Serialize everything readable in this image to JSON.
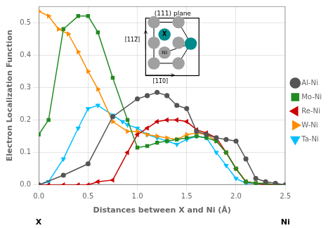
{
  "chart_data": {
    "type": "line",
    "xlabel": "Distances between X and Ni (Å)",
    "ylabel": "Electron Localization Function",
    "xlim": [
      0.0,
      2.5
    ],
    "ylim": [
      0.0,
      0.55
    ],
    "xticks": [
      {
        "value": 0.0,
        "label": "0.0"
      },
      {
        "value": 0.5,
        "label": "0.5"
      },
      {
        "value": 1.0,
        "label": "1.0"
      },
      {
        "value": 1.5,
        "label": "1.5"
      },
      {
        "value": 2.0,
        "label": "2.0"
      },
      {
        "value": 2.5,
        "label": "2.5"
      }
    ],
    "yticks": [
      {
        "value": 0.0,
        "label": "0.0"
      },
      {
        "value": 0.1,
        "label": "0.1"
      },
      {
        "value": 0.2,
        "label": "0.2"
      },
      {
        "value": 0.3,
        "label": "0.3"
      },
      {
        "value": 0.4,
        "label": "0.4"
      },
      {
        "value": 0.5,
        "label": "0.5"
      }
    ],
    "grid": true,
    "legend": "right",
    "series": [
      {
        "name": "Al-Ni",
        "color": "#555555",
        "marker": "circle",
        "x": [
          0.0,
          0.25,
          0.5,
          0.75,
          1.0,
          1.1,
          1.2,
          1.3,
          1.4,
          1.5,
          1.6,
          1.7,
          1.8,
          1.9,
          2.0,
          2.1,
          2.2,
          2.3,
          2.4,
          2.5
        ],
        "values": [
          0.0,
          0.03,
          0.065,
          0.21,
          0.265,
          0.275,
          0.285,
          0.275,
          0.245,
          0.235,
          0.165,
          0.155,
          0.145,
          0.14,
          0.135,
          0.08,
          0.02,
          0.01,
          0.005,
          0.0
        ]
      },
      {
        "name": "Mo-Ni",
        "color": "#228B22",
        "marker": "square",
        "x": [
          0.0,
          0.1,
          0.25,
          0.4,
          0.5,
          0.6,
          0.75,
          0.9,
          1.0,
          1.1,
          1.2,
          1.3,
          1.4,
          1.5,
          1.6,
          1.7,
          1.8,
          1.9,
          2.0,
          2.1,
          2.2,
          2.3,
          2.4,
          2.5
        ],
        "values": [
          0.155,
          0.2,
          0.48,
          0.52,
          0.52,
          0.47,
          0.33,
          0.2,
          0.115,
          0.12,
          0.13,
          0.135,
          0.14,
          0.145,
          0.15,
          0.145,
          0.135,
          0.1,
          0.05,
          0.01,
          0.005,
          0.005,
          0.0,
          0.0
        ]
      },
      {
        "name": "Re-Ni",
        "color": "#CC0000",
        "marker": "triangle-left",
        "x": [
          0.0,
          0.1,
          0.25,
          0.4,
          0.5,
          0.6,
          0.75,
          0.9,
          1.0,
          1.1,
          1.2,
          1.3,
          1.4,
          1.5,
          1.6,
          1.7,
          1.8,
          1.9,
          2.0,
          2.1,
          2.2,
          2.3,
          2.4,
          2.5
        ],
        "values": [
          0.0,
          0.0,
          0.0,
          0.0,
          0.0,
          0.01,
          0.015,
          0.1,
          0.155,
          0.175,
          0.195,
          0.2,
          0.2,
          0.195,
          0.17,
          0.16,
          0.145,
          0.1,
          0.05,
          0.01,
          0.005,
          0.0,
          0.0,
          0.0
        ]
      },
      {
        "name": "W-Ni",
        "color": "#FF8C00",
        "marker": "triangle-right",
        "x": [
          0.0,
          0.1,
          0.2,
          0.3,
          0.4,
          0.5,
          0.6,
          0.75,
          0.9,
          1.0,
          1.1,
          1.2,
          1.3,
          1.4,
          1.5,
          1.6,
          1.7,
          1.8,
          1.9,
          2.0,
          2.1,
          2.2,
          2.3,
          2.4,
          2.5
        ],
        "values": [
          0.535,
          0.52,
          0.48,
          0.465,
          0.41,
          0.35,
          0.295,
          0.195,
          0.165,
          0.165,
          0.155,
          0.15,
          0.145,
          0.14,
          0.155,
          0.16,
          0.155,
          0.135,
          0.1,
          0.05,
          0.01,
          0.005,
          0.005,
          0.0,
          0.0
        ]
      },
      {
        "name": "Ta-Ni",
        "color": "#00BFFF",
        "marker": "triangle-down",
        "x": [
          0.0,
          0.1,
          0.25,
          0.4,
          0.5,
          0.6,
          0.75,
          0.85,
          0.9,
          1.0,
          1.1,
          1.2,
          1.3,
          1.4,
          1.5,
          1.6,
          1.7,
          1.8,
          1.9,
          2.0,
          2.1,
          2.2,
          2.3,
          2.4,
          2.5
        ],
        "values": [
          0.0,
          0.01,
          0.08,
          0.175,
          0.235,
          0.245,
          0.215,
          0.195,
          0.185,
          0.175,
          0.155,
          0.145,
          0.135,
          0.125,
          0.14,
          0.15,
          0.145,
          0.1,
          0.06,
          0.02,
          0.005,
          0.005,
          0.0,
          0.0,
          0.0
        ]
      }
    ],
    "annotations": [
      "X",
      "Ni"
    ],
    "inset": {
      "title": "(111) plane",
      "label_up": "[112̅]",
      "label_right": "[11̅0]",
      "atom_labels": [
        "Ni",
        "X"
      ],
      "ni_color": "#A0A0A0",
      "teal_color": "#008B8B"
    }
  }
}
